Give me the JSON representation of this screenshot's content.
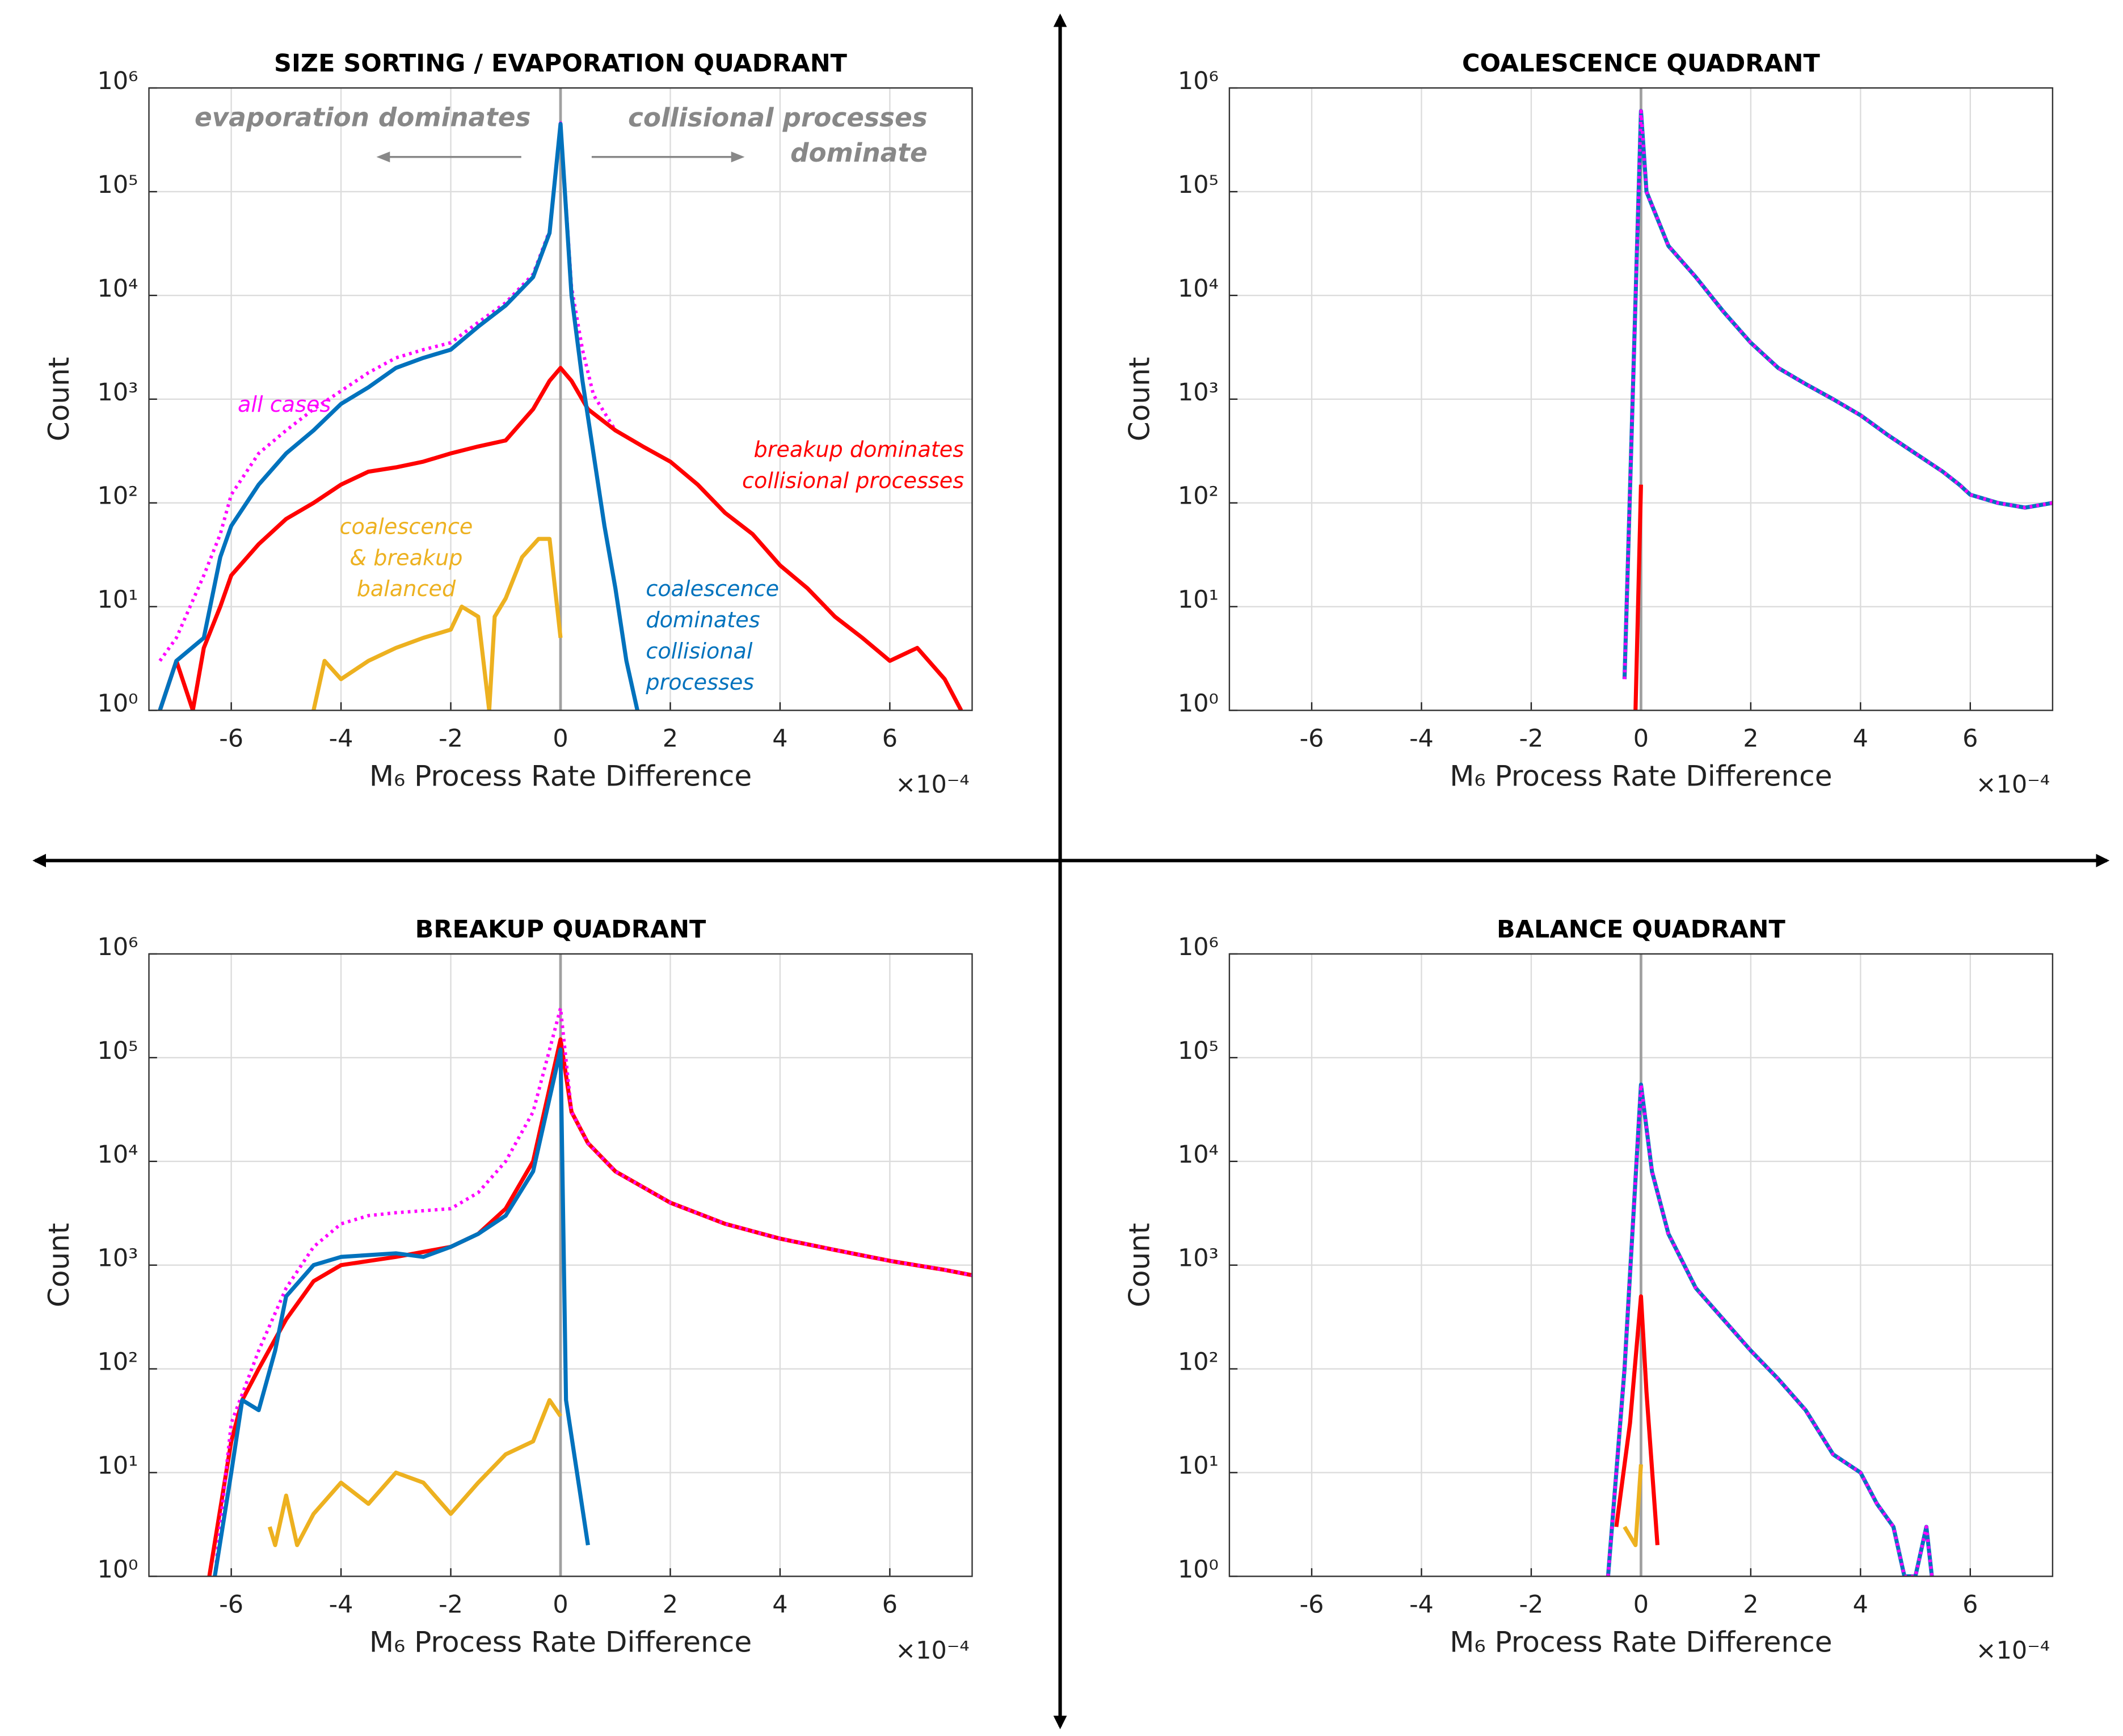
{
  "chart_data": [
    {
      "type": "line",
      "title": "SIZE SORTING / EVAPORATION QUADRANT",
      "x_label": "M₆ Process Rate Difference",
      "x_multiplier": "×10⁻⁴",
      "y_label": "Count",
      "xlim": [
        -7.5,
        7.5
      ],
      "xticks": [
        -6,
        -4,
        -2,
        0,
        2,
        4,
        6
      ],
      "ylim": [
        1,
        1000000
      ],
      "log_y": true,
      "grid": true,
      "zero_line": 0,
      "yticks": [
        {
          "value": 1,
          "label": "10⁰"
        },
        {
          "value": 10,
          "label": "10¹"
        },
        {
          "value": 100,
          "label": "10²"
        },
        {
          "value": 1000,
          "label": "10³"
        },
        {
          "value": 10000,
          "label": "10⁴"
        },
        {
          "value": 100000,
          "label": "10⁵"
        },
        {
          "value": 1000000,
          "label": "10⁶"
        }
      ],
      "annotations": [
        "evaporation dominates",
        "collisional processes\ndominate"
      ],
      "series": [
        {
          "name": "all cases",
          "color": "#ff00ff",
          "dotted": true,
          "x": [
            -7.3,
            -7,
            -6.5,
            -6.2,
            -6,
            -5.5,
            -5,
            -4.5,
            -4,
            -3.5,
            -3,
            -2.5,
            -2,
            -1.5,
            -1,
            -0.5,
            -0.2,
            0,
            0.2,
            0.4,
            0.6,
            1
          ],
          "values": [
            3,
            5,
            20,
            50,
            120,
            300,
            500,
            800,
            1200,
            1800,
            2500,
            3000,
            3500,
            5500,
            8500,
            16000,
            42000,
            460000,
            12000,
            3000,
            1100,
            500
          ]
        },
        {
          "name": "breakup dominates\ncollisional processes",
          "color": "#ff0000",
          "x": [
            -7.3,
            -7,
            -6.7,
            -6.5,
            -6.2,
            -6,
            -5.5,
            -5,
            -4.5,
            -4,
            -3.5,
            -3,
            -2.5,
            -2,
            -1.5,
            -1,
            -0.5,
            -0.2,
            0,
            0.2,
            0.5,
            1,
            1.5,
            2,
            2.5,
            3,
            3.5,
            4,
            4.5,
            5,
            5.5,
            6,
            6.5,
            7,
            7.3
          ],
          "values": [
            1,
            3,
            1,
            4,
            10,
            20,
            40,
            70,
            100,
            150,
            200,
            220,
            250,
            300,
            350,
            400,
            800,
            1500,
            2000,
            1500,
            800,
            500,
            350,
            250,
            150,
            80,
            50,
            25,
            15,
            8,
            5,
            3,
            4,
            2,
            1
          ]
        },
        {
          "name": "coalescence\ndominates\ncollisional\nprocesses",
          "color": "#0072bd",
          "x": [
            -7.3,
            -7,
            -6.5,
            -6.2,
            -6,
            -5.5,
            -5,
            -4.5,
            -4,
            -3.5,
            -3,
            -2.5,
            -2,
            -1.5,
            -1,
            -0.5,
            -0.2,
            0,
            0.2,
            0.4,
            0.6,
            0.8,
            1,
            1.2,
            1.4
          ],
          "values": [
            1,
            3,
            5,
            30,
            60,
            150,
            300,
            500,
            900,
            1300,
            2000,
            2500,
            3000,
            5000,
            8000,
            15000,
            40000,
            450000,
            10000,
            1500,
            300,
            60,
            15,
            3,
            1
          ]
        },
        {
          "name": "coalescence\n& breakup\nbalanced",
          "color": "#edb120",
          "x": [
            -4.5,
            -4.3,
            -4,
            -3.5,
            -3,
            -2.5,
            -2,
            -1.8,
            -1.5,
            -1.3,
            -1.2,
            -1,
            -0.7,
            -0.4,
            -0.2,
            0
          ],
          "values": [
            1,
            3,
            2,
            3,
            4,
            5,
            6,
            10,
            8,
            1,
            8,
            12,
            30,
            45,
            45,
            5
          ]
        }
      ]
    },
    {
      "type": "line",
      "title": "COALESCENCE QUADRANT",
      "x_label": "M₆ Process Rate Difference",
      "x_multiplier": "×10⁻⁴",
      "y_label": "Count",
      "xlim": [
        -7.5,
        7.5
      ],
      "xticks": [
        -6,
        -4,
        -2,
        0,
        2,
        4,
        6
      ],
      "ylim": [
        1,
        1000000
      ],
      "log_y": true,
      "grid": true,
      "zero_line": 0,
      "yticks": [
        {
          "value": 1,
          "label": "10⁰"
        },
        {
          "value": 10,
          "label": "10¹"
        },
        {
          "value": 100,
          "label": "10²"
        },
        {
          "value": 1000,
          "label": "10³"
        },
        {
          "value": 10000,
          "label": "10⁴"
        },
        {
          "value": 100000,
          "label": "10⁵"
        },
        {
          "value": 1000000,
          "label": "10⁶"
        }
      ],
      "series": [
        {
          "color": "#0072bd",
          "x": [
            -0.3,
            0,
            0.1,
            0.5,
            1,
            1.5,
            2,
            2.5,
            3,
            3.5,
            4,
            4.5,
            5,
            5.5,
            5.8,
            6,
            6.5,
            7,
            7.5
          ],
          "values": [
            2,
            600000,
            100000,
            30000,
            15000,
            7000,
            3500,
            2000,
            1400,
            1000,
            700,
            450,
            300,
            200,
            150,
            120,
            100,
            90,
            100
          ]
        },
        {
          "color": "#ff00ff",
          "dotted": true,
          "x": [
            -0.3,
            0,
            0.1,
            0.5,
            1,
            1.5,
            2,
            2.5,
            3,
            3.5,
            4,
            4.5,
            5,
            5.5,
            5.8,
            6,
            6.5,
            7,
            7.5
          ],
          "values": [
            2,
            600000,
            100000,
            30000,
            15000,
            7000,
            3500,
            2000,
            1400,
            1000,
            700,
            450,
            300,
            200,
            150,
            120,
            100,
            90,
            100
          ]
        },
        {
          "color": "#ff0000",
          "x": [
            -0.1,
            0
          ],
          "values": [
            1,
            150
          ]
        }
      ]
    },
    {
      "type": "line",
      "title": "BREAKUP QUADRANT",
      "x_label": "M₆ Process Rate Difference",
      "x_multiplier": "×10⁻⁴",
      "y_label": "Count",
      "xlim": [
        -7.5,
        7.5
      ],
      "xticks": [
        -6,
        -4,
        -2,
        0,
        2,
        4,
        6
      ],
      "ylim": [
        1,
        1000000
      ],
      "log_y": true,
      "grid": true,
      "zero_line": 0,
      "yticks": [
        {
          "value": 1,
          "label": "10⁰"
        },
        {
          "value": 10,
          "label": "10¹"
        },
        {
          "value": 100,
          "label": "10²"
        },
        {
          "value": 1000,
          "label": "10³"
        },
        {
          "value": 10000,
          "label": "10⁴"
        },
        {
          "value": 100000,
          "label": "10⁵"
        },
        {
          "value": 1000000,
          "label": "10⁶"
        }
      ],
      "series": [
        {
          "color": "#ff0000",
          "x": [
            -6.4,
            -6,
            -5.8,
            -5.5,
            -5,
            -4.5,
            -4,
            -3,
            -2,
            -1.5,
            -1,
            -0.5,
            0,
            0.2,
            0.5,
            1,
            2,
            3,
            4,
            5,
            6,
            7,
            7.5
          ],
          "values": [
            1,
            20,
            50,
            100,
            300,
            700,
            1000,
            1200,
            1500,
            2000,
            3500,
            10000,
            150000,
            30000,
            15000,
            8000,
            4000,
            2500,
            1800,
            1400,
            1100,
            900,
            800
          ]
        },
        {
          "color": "#ff00ff",
          "dotted": true,
          "x": [
            -6.3,
            -6,
            -5.5,
            -5,
            -4.5,
            -4,
            -3.5,
            -3,
            -2,
            -1.5,
            -1,
            -0.5,
            0,
            0.2,
            0.5,
            1,
            2,
            3,
            4,
            5,
            6,
            7,
            7.5
          ],
          "values": [
            1,
            30,
            150,
            600,
            1500,
            2500,
            3000,
            3200,
            3500,
            5000,
            10000,
            30000,
            300000,
            30000,
            15000,
            8000,
            4000,
            2500,
            1800,
            1400,
            1100,
            900,
            800
          ]
        },
        {
          "color": "#0072bd",
          "x": [
            -6.3,
            -6,
            -5.8,
            -5.5,
            -5.2,
            -5,
            -4.5,
            -4,
            -3,
            -2.5,
            -2,
            -1.5,
            -1,
            -0.5,
            0,
            0.1,
            0.3,
            0.5
          ],
          "values": [
            1,
            10,
            50,
            40,
            150,
            500,
            1000,
            1200,
            1300,
            1200,
            1500,
            2000,
            3000,
            8000,
            120000,
            50,
            10,
            2
          ]
        },
        {
          "color": "#edb120",
          "x": [
            -5.3,
            -5.2,
            -5,
            -4.8,
            -4.5,
            -4,
            -3.5,
            -3,
            -2.5,
            -2,
            -1.5,
            -1,
            -0.5,
            -0.2,
            0
          ],
          "values": [
            3,
            2,
            6,
            2,
            4,
            8,
            5,
            10,
            8,
            4,
            8,
            15,
            20,
            50,
            35
          ]
        }
      ]
    },
    {
      "type": "line",
      "title": "BALANCE QUADRANT",
      "x_label": "M₆ Process Rate Difference",
      "x_multiplier": "×10⁻⁴",
      "y_label": "Count",
      "xlim": [
        -7.5,
        7.5
      ],
      "xticks": [
        -6,
        -4,
        -2,
        0,
        2,
        4,
        6
      ],
      "ylim": [
        1,
        1000000
      ],
      "log_y": true,
      "grid": true,
      "zero_line": 0,
      "yticks": [
        {
          "value": 1,
          "label": "10⁰"
        },
        {
          "value": 10,
          "label": "10¹"
        },
        {
          "value": 100,
          "label": "10²"
        },
        {
          "value": 1000,
          "label": "10³"
        },
        {
          "value": 10000,
          "label": "10⁴"
        },
        {
          "value": 100000,
          "label": "10⁵"
        },
        {
          "value": 1000000,
          "label": "10⁶"
        }
      ],
      "series": [
        {
          "color": "#0072bd",
          "x": [
            -0.6,
            -0.3,
            0,
            0.2,
            0.5,
            1,
            1.5,
            2,
            2.5,
            3,
            3.5,
            4,
            4.3,
            4.6,
            4.8,
            5,
            5.2,
            5.3
          ],
          "values": [
            1,
            100,
            55000,
            8000,
            2000,
            600,
            300,
            150,
            80,
            40,
            15,
            10,
            5,
            3,
            1,
            1,
            3,
            1
          ]
        },
        {
          "color": "#ff00ff",
          "dotted": true,
          "x": [
            -0.6,
            -0.3,
            0,
            0.2,
            0.5,
            1,
            1.5,
            2,
            2.5,
            3,
            3.5,
            4,
            4.3,
            4.6,
            4.8,
            5,
            5.2,
            5.3
          ],
          "values": [
            1,
            100,
            55000,
            8000,
            2000,
            600,
            300,
            150,
            80,
            40,
            15,
            10,
            5,
            3,
            1,
            1,
            3,
            1
          ]
        },
        {
          "color": "#ff0000",
          "x": [
            -0.45,
            -0.2,
            0,
            0.1,
            0.3
          ],
          "values": [
            3,
            30,
            500,
            60,
            2
          ]
        },
        {
          "color": "#edb120",
          "x": [
            -0.3,
            -0.1,
            0
          ],
          "values": [
            3,
            2,
            12
          ]
        }
      ]
    }
  ]
}
